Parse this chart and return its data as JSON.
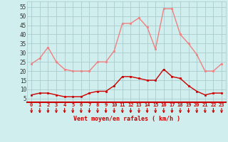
{
  "hours": [
    0,
    1,
    2,
    3,
    4,
    5,
    6,
    7,
    8,
    9,
    10,
    11,
    12,
    13,
    14,
    15,
    16,
    17,
    18,
    19,
    20,
    21,
    22,
    23
  ],
  "rafales": [
    24,
    27,
    33,
    25,
    21,
    20,
    20,
    20,
    25,
    25,
    31,
    46,
    46,
    49,
    44,
    32,
    54,
    54,
    40,
    35,
    29,
    20,
    20,
    24
  ],
  "vent_moyen": [
    7,
    8,
    8,
    7,
    6,
    6,
    6,
    8,
    9,
    9,
    12,
    17,
    17,
    16,
    15,
    15,
    21,
    17,
    16,
    12,
    9,
    7,
    8,
    8
  ],
  "color_rafales": "#f08080",
  "color_vent": "#cc0000",
  "bg_color": "#d0eeee",
  "grid_color": "#aacccc",
  "xlabel": "Vent moyen/en rafales ( km/h )",
  "ytick_labels": [
    "5",
    "10",
    "15",
    "20",
    "25",
    "30",
    "35",
    "40",
    "45",
    "50",
    "55"
  ],
  "ytick_vals": [
    5,
    10,
    15,
    20,
    25,
    30,
    35,
    40,
    45,
    50,
    55
  ],
  "ylim": [
    3,
    58
  ],
  "xlim": [
    -0.5,
    23.5
  ]
}
